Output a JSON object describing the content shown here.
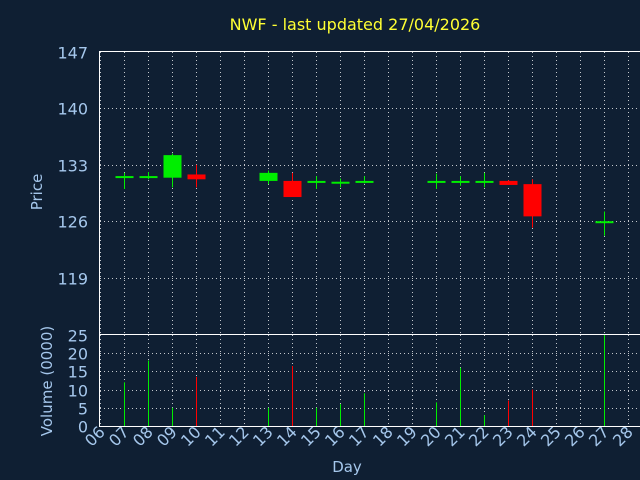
{
  "chart_data": {
    "type": "candlestick",
    "title": "NWF - last updated 27/04/2026",
    "xlabel": "Day",
    "price_label": "Price",
    "volume_label": "Volume (0000)",
    "x_ticks": [
      "06",
      "07",
      "08",
      "09",
      "10",
      "11",
      "12",
      "13",
      "14",
      "15",
      "16",
      "17",
      "18",
      "19",
      "20",
      "21",
      "22",
      "23",
      "24",
      "25",
      "26",
      "27",
      "28"
    ],
    "price_ticks": [
      147,
      140,
      133,
      126,
      119
    ],
    "price_ylim": [
      112,
      147
    ],
    "volume_ticks": [
      0,
      5,
      10,
      15,
      20,
      25
    ],
    "volume_ylim": [
      0,
      25
    ],
    "colors": {
      "up": "#00ee00",
      "down": "#ff0000",
      "background": "#0f1f33",
      "title": "#ffff33",
      "axis_text": "#a5c7ec"
    },
    "series": [
      {
        "day": "07",
        "open": 131.6,
        "high": 132.0,
        "low": 130.0,
        "close": 131.6,
        "volume": 12
      },
      {
        "day": "08",
        "open": 131.6,
        "high": 132.1,
        "low": 131.2,
        "close": 131.6,
        "volume": 18
      },
      {
        "day": "09",
        "open": 131.4,
        "high": 134.4,
        "low": 130.2,
        "close": 134.2,
        "volume": 5
      },
      {
        "day": "10",
        "open": 131.8,
        "high": 133.0,
        "low": 130.2,
        "close": 131.2,
        "volume": 13.5
      },
      {
        "day": "13",
        "open": 131.0,
        "high": 132.3,
        "low": 130.6,
        "close": 132.0,
        "volume": 5
      },
      {
        "day": "14",
        "open": 131.0,
        "high": 132.0,
        "low": 129.0,
        "close": 129.0,
        "volume": 16.5
      },
      {
        "day": "15",
        "open": 131.0,
        "high": 131.6,
        "low": 130.0,
        "close": 131.0,
        "volume": 5
      },
      {
        "day": "16",
        "open": 130.9,
        "high": 131.3,
        "low": 130.2,
        "close": 130.9,
        "volume": 6
      },
      {
        "day": "17",
        "open": 131.0,
        "high": 131.6,
        "low": 130.7,
        "close": 131.0,
        "volume": 9
      },
      {
        "day": "20",
        "open": 131.0,
        "high": 131.9,
        "low": 130.0,
        "close": 131.0,
        "volume": 6.5
      },
      {
        "day": "21",
        "open": 131.0,
        "high": 131.6,
        "low": 130.4,
        "close": 131.0,
        "volume": 16
      },
      {
        "day": "22",
        "open": 131.0,
        "high": 132.0,
        "low": 130.2,
        "close": 131.0,
        "volume": 3
      },
      {
        "day": "23",
        "open": 131.0,
        "high": 131.1,
        "low": 130.5,
        "close": 130.5,
        "volume": 7
      },
      {
        "day": "24",
        "open": 130.6,
        "high": 131.2,
        "low": 125.2,
        "close": 126.6,
        "volume": 10
      },
      {
        "day": "27",
        "open": 126.0,
        "high": 127.2,
        "low": 124.2,
        "close": 126.0,
        "volume": 25
      }
    ]
  }
}
